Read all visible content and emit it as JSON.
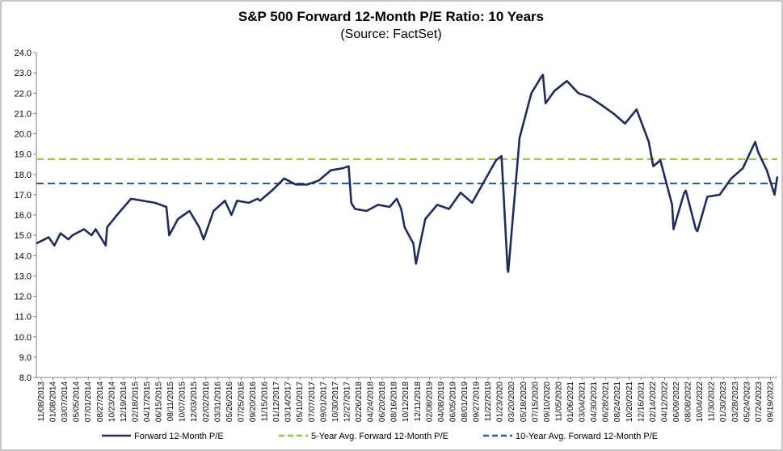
{
  "chart_data": {
    "type": "line",
    "title": "S&P 500 Forward 12-Month P/E Ratio: 10 Years",
    "subtitle": "(Source: FactSet)",
    "ylim": [
      8.0,
      24.0
    ],
    "yticks": [
      "8.0",
      "9.0",
      "10.0",
      "11.0",
      "12.0",
      "13.0",
      "14.0",
      "15.0",
      "16.0",
      "17.0",
      "18.0",
      "19.0",
      "20.0",
      "21.0",
      "22.0",
      "23.0",
      "24.0"
    ],
    "x_start": "2013-11-08",
    "x_end": "2023-11-10",
    "xticks": [
      "11/08/2013",
      "01/08/2014",
      "03/07/2014",
      "05/05/2014",
      "07/01/2014",
      "08/27/2014",
      "10/23/2014",
      "12/19/2014",
      "02/18/2015",
      "04/17/2015",
      "06/15/2015",
      "08/11/2015",
      "10/07/2015",
      "12/03/2015",
      "02/02/2016",
      "03/31/2016",
      "05/26/2016",
      "07/25/2016",
      "09/20/2016",
      "11/15/2016",
      "01/12/2017",
      "03/14/2017",
      "05/10/2017",
      "07/07/2017",
      "09/01/2017",
      "10/30/2017",
      "12/27/2017",
      "02/26/2018",
      "04/24/2018",
      "06/20/2018",
      "08/16/2018",
      "10/12/2018",
      "12/11/2018",
      "02/08/2019",
      "04/08/2019",
      "06/05/2019",
      "08/01/2019",
      "09/27/2019",
      "11/22/2019",
      "01/23/2020",
      "03/20/2020",
      "05/18/2020",
      "07/15/2020",
      "09/10/2020",
      "11/05/2020",
      "01/06/2021",
      "03/04/2021",
      "04/30/2021",
      "06/28/2021",
      "08/24/2021",
      "10/20/2021",
      "12/16/2021",
      "02/14/2022",
      "04/12/2022",
      "06/09/2022",
      "08/08/2022",
      "10/04/2022",
      "11/30/2022",
      "01/30/2023",
      "03/28/2023",
      "05/24/2023",
      "07/24/2023",
      "09/19/2023"
    ],
    "grid": false,
    "legend_position": "bottom",
    "series": [
      {
        "name": "Forward 12-Month P/E",
        "color": "#1f2d5a",
        "x": [
          "2013-11-08",
          "2014-01-08",
          "2014-02-05",
          "2014-03-07",
          "2014-04-15",
          "2014-05-05",
          "2014-07-01",
          "2014-08-07",
          "2014-08-27",
          "2014-10-16",
          "2014-10-23",
          "2014-12-19",
          "2015-02-18",
          "2015-04-17",
          "2015-06-15",
          "2015-08-11",
          "2015-08-25",
          "2015-10-07",
          "2015-12-03",
          "2016-01-20",
          "2016-02-11",
          "2016-03-31",
          "2016-05-26",
          "2016-06-27",
          "2016-07-25",
          "2016-09-20",
          "2016-11-03",
          "2016-11-15",
          "2017-01-12",
          "2017-03-14",
          "2017-05-10",
          "2017-07-07",
          "2017-09-01",
          "2017-10-30",
          "2017-12-27",
          "2018-01-26",
          "2018-02-08",
          "2018-02-26",
          "2018-04-24",
          "2018-06-20",
          "2018-08-16",
          "2018-09-20",
          "2018-10-12",
          "2018-10-29",
          "2018-12-11",
          "2018-12-24",
          "2019-02-08",
          "2019-04-08",
          "2019-06-05",
          "2019-08-01",
          "2019-09-27",
          "2019-11-22",
          "2020-01-23",
          "2020-02-19",
          "2020-03-20",
          "2020-03-23",
          "2020-05-18",
          "2020-07-15",
          "2020-09-02",
          "2020-09-10",
          "2020-09-23",
          "2020-11-05",
          "2021-01-06",
          "2021-03-04",
          "2021-04-30",
          "2021-06-28",
          "2021-08-24",
          "2021-10-20",
          "2021-12-16",
          "2022-02-14",
          "2022-03-08",
          "2022-04-12",
          "2022-06-09",
          "2022-06-16",
          "2022-08-08",
          "2022-08-16",
          "2022-10-04",
          "2022-10-12",
          "2022-11-30",
          "2023-01-30",
          "2023-03-28",
          "2023-05-24",
          "2023-07-24",
          "2023-08-07",
          "2023-09-19",
          "2023-10-27",
          "2023-11-10"
        ],
        "values": [
          14.6,
          14.9,
          14.5,
          15.1,
          14.8,
          15.0,
          15.3,
          15.0,
          15.3,
          14.5,
          15.4,
          16.1,
          16.8,
          16.7,
          16.6,
          16.4,
          15.0,
          15.8,
          16.2,
          15.4,
          14.8,
          16.2,
          16.7,
          16.0,
          16.7,
          16.6,
          16.8,
          16.7,
          17.2,
          17.8,
          17.5,
          17.5,
          17.7,
          18.2,
          18.3,
          18.4,
          16.6,
          16.3,
          16.2,
          16.5,
          16.4,
          16.8,
          16.3,
          15.4,
          14.6,
          13.6,
          15.8,
          16.5,
          16.3,
          17.1,
          16.6,
          17.6,
          18.7,
          18.9,
          13.3,
          13.2,
          19.8,
          22.0,
          22.8,
          22.9,
          21.5,
          22.1,
          22.6,
          22.0,
          21.8,
          21.4,
          21.0,
          20.5,
          21.2,
          19.6,
          18.4,
          18.7,
          16.5,
          15.3,
          17.1,
          17.2,
          15.3,
          15.2,
          16.9,
          17.0,
          17.8,
          18.3,
          19.6,
          19.1,
          18.2,
          17.0,
          17.9
        ]
      },
      {
        "name": "5-Year Avg. Forward 12-Month P/E",
        "color": "#8dc63f",
        "values": [
          18.75,
          18.75
        ]
      },
      {
        "name": "10-Year Avg. Forward 12-Month P/E",
        "color": "#2e5d8e",
        "values": [
          17.55,
          17.55
        ]
      }
    ]
  }
}
